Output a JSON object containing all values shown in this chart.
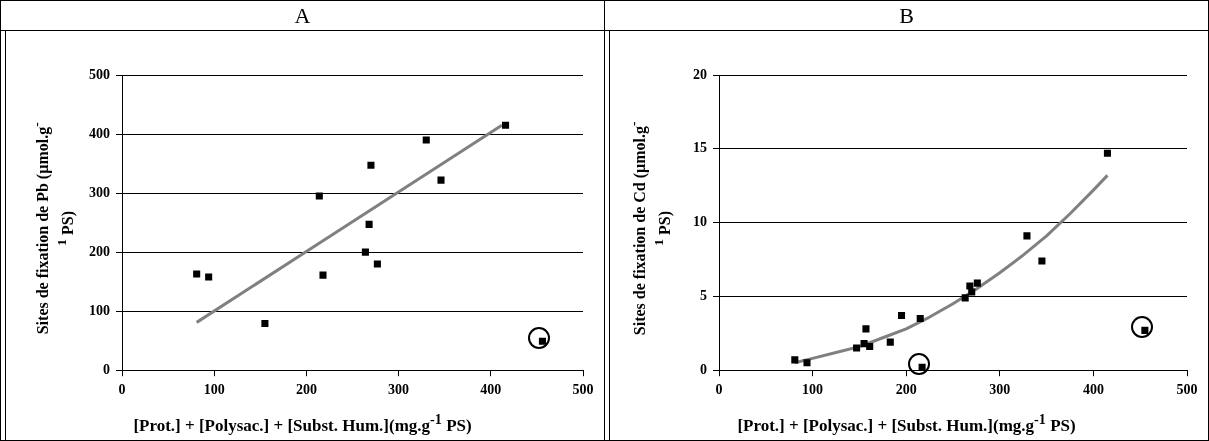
{
  "chart_data": [
    {
      "type": "scatter",
      "title": "A",
      "xlabel": "[Prot.] + [Polysac.] + [Subst. Hum.](mg.g$^{-1}$ PS)",
      "ylabel": "Sites de fixation de Pb (µmol.g$^{-1}$ PS)",
      "xlim": [
        0,
        500
      ],
      "xticks": [
        0,
        100,
        200,
        300,
        400,
        500
      ],
      "ylim": [
        0,
        500
      ],
      "yticks": [
        0,
        100,
        200,
        300,
        400,
        500
      ],
      "grid": "y",
      "legend": false,
      "series": [
        {
          "marker": "square",
          "color": "#000000",
          "x": [
            81,
            94,
            155,
            214,
            218,
            264,
            268,
            270,
            277,
            330,
            346,
            416
          ],
          "values": [
            163,
            158,
            79,
            295,
            161,
            200,
            247,
            347,
            180,
            390,
            322,
            415
          ]
        },
        {
          "marker": "square",
          "color": "#000000",
          "x": [
            456
          ],
          "values": [
            49
          ]
        },
        {
          "type": "line",
          "marker": "none",
          "color": "#808080",
          "x": [
            81,
            412
          ],
          "values": [
            81,
            415
          ]
        }
      ]
    },
    {
      "type": "scatter",
      "title": "B",
      "xlabel": "[Prot.] + [Polysac.] + [Subst. Hum.](mg.g$^{-1}$ PS)",
      "ylabel": "Sites de fixation de Cd (µmol.g$^{-1}$ PS)",
      "xlim": [
        0,
        500
      ],
      "xticks": [
        0,
        100,
        200,
        300,
        400,
        500
      ],
      "ylim": [
        0,
        20
      ],
      "yticks": [
        0,
        5,
        10,
        15,
        20
      ],
      "grid": "y",
      "legend": false,
      "series": [
        {
          "marker": "square",
          "color": "#000000",
          "x": [
            81,
            94,
            147,
            155,
            157,
            161,
            183,
            195,
            215,
            263,
            268,
            270,
            276,
            329,
            345,
            415
          ],
          "values": [
            0.7,
            0.5,
            1.5,
            1.8,
            2.8,
            1.6,
            1.9,
            3.7,
            3.5,
            4.9,
            5.7,
            5.3,
            5.9,
            9.1,
            7.4,
            14.7
          ]
        },
        {
          "marker": "square",
          "color": "#000000",
          "x": [
            217,
            455
          ],
          "values": [
            0.2,
            2.7
          ]
        },
        {
          "type": "line",
          "marker": "none",
          "color": "#808080",
          "x": [
            81,
            100,
            125,
            150,
            175,
            200,
            225,
            250,
            275,
            300,
            325,
            350,
            375,
            400,
            415
          ],
          "values": [
            0.5,
            0.8,
            1.2,
            1.6,
            2.2,
            2.8,
            3.6,
            4.5,
            5.5,
            6.6,
            7.8,
            9.1,
            10.6,
            12.2,
            13.2
          ]
        }
      ]
    }
  ]
}
